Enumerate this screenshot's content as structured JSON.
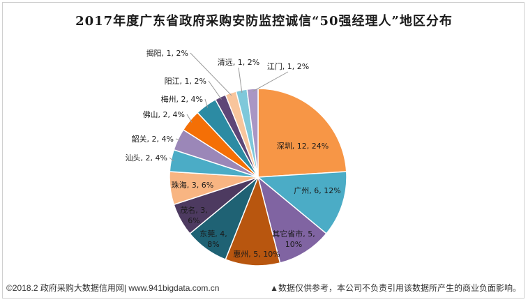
{
  "chart_data": {
    "type": "pie",
    "title": "2017年度广东省政府采购安防监控诚信“50强经理人”地区分布",
    "slices": [
      {
        "label": "深圳",
        "value": 12,
        "percent": "24%",
        "color": "#F79646",
        "text": "深圳, 12, 24%"
      },
      {
        "label": "广州",
        "value": 6,
        "percent": "12%",
        "color": "#4BACC6",
        "text": "广州, 6, 12%"
      },
      {
        "label": "其它省市",
        "value": 5,
        "percent": "10%",
        "color": "#8064A2",
        "text": "其它省市, 5, 10%"
      },
      {
        "label": "惠州",
        "value": 5,
        "percent": "10%",
        "color": "#B8560F",
        "text": "惠州, 5, 10%"
      },
      {
        "label": "东莞",
        "value": 4,
        "percent": "8%",
        "color": "#1F6274",
        "text": "东莞, 4, 8%"
      },
      {
        "label": "茂名",
        "value": 3,
        "percent": "6%",
        "color": "#4D3A60",
        "text": "茂名, 3, 6%"
      },
      {
        "label": "珠海",
        "value": 3,
        "percent": "6%",
        "color": "#F8B582",
        "text": "珠海, 3, 6%"
      },
      {
        "label": "汕头",
        "value": 2,
        "percent": "4%",
        "color": "#4BACC6",
        "text": "汕头, 2, 4%"
      },
      {
        "label": "韶关",
        "value": 2,
        "percent": "4%",
        "color": "#9B87B8",
        "text": "韶关, 2, 4%"
      },
      {
        "label": "佛山",
        "value": 2,
        "percent": "4%",
        "color": "#F46F06",
        "text": "佛山, 2, 4%"
      },
      {
        "label": "梅州",
        "value": 2,
        "percent": "4%",
        "color": "#2C8BA3",
        "text": "梅州, 2, 4%"
      },
      {
        "label": "阳江",
        "value": 1,
        "percent": "2%",
        "color": "#5E4677",
        "text": "阳江, 1, 2%"
      },
      {
        "label": "揭阳",
        "value": 1,
        "percent": "2%",
        "color": "#F8C59C",
        "text": "揭阳, 1, 2%"
      },
      {
        "label": "清远",
        "value": 1,
        "percent": "2%",
        "color": "#7FC8DA",
        "text": "清远, 1, 2%"
      },
      {
        "label": "江门",
        "value": 1,
        "percent": "2%",
        "color": "#A996C4",
        "text": "江门, 1, 2%"
      }
    ]
  },
  "footer": {
    "source": "©2018.2 政府采购大数据信用网| www.941bigdata.com.cn",
    "disclaimer": "▲数据仅供参考，本公司不负责引用该数据所产生的商业负面影响。"
  }
}
